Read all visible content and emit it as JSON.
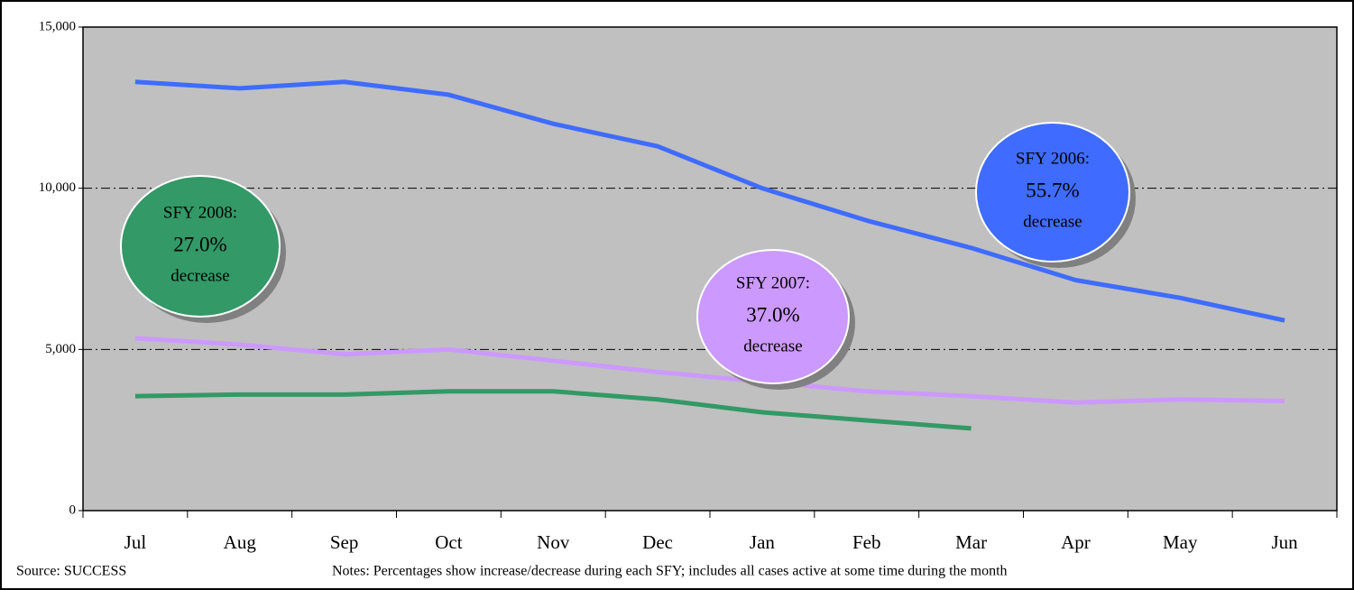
{
  "chart_data": {
    "type": "line",
    "categories": [
      "Jul",
      "Aug",
      "Sep",
      "Oct",
      "Nov",
      "Dec",
      "Jan",
      "Feb",
      "Mar",
      "Apr",
      "May",
      "Jun"
    ],
    "series": [
      {
        "color": "#3f6cff",
        "values": [
          13300,
          13100,
          13300,
          12900,
          12000,
          11300,
          10000,
          9000,
          8150,
          7150,
          6600,
          5900
        ]
      },
      {
        "color": "#cc99ff",
        "values": [
          5350,
          5150,
          4850,
          5000,
          4650,
          4300,
          4000,
          3700,
          3550,
          3350,
          3450,
          3400
        ]
      },
      {
        "color": "#339966",
        "values": [
          3550,
          3600,
          3600,
          3700,
          3700,
          3450,
          3050,
          2800,
          2550,
          null,
          null,
          null
        ]
      }
    ],
    "ylim": [
      0,
      15000
    ],
    "yticks": [
      0,
      {
        "value": 5000,
        "label": "5,000"
      },
      {
        "value": 10000,
        "label": "10,000"
      },
      {
        "value": 15000,
        "label": "15,000"
      }
    ],
    "grid": true,
    "annotations": [
      {
        "lines": [
          "SFY 2008:",
          "27.0%",
          "decrease"
        ],
        "color": "#339966"
      },
      {
        "lines": [
          "SFY 2007:",
          "37.0%",
          "decrease"
        ],
        "color": "#cc99ff"
      },
      {
        "lines": [
          "SFY 2006:",
          "55.7%",
          "decrease"
        ],
        "color": "#3f6cff"
      }
    ],
    "source": "Source: SUCCESS",
    "notes": "Notes: Percentages show increase/decrease during each SFY;  includes all cases active at some time during the month"
  }
}
